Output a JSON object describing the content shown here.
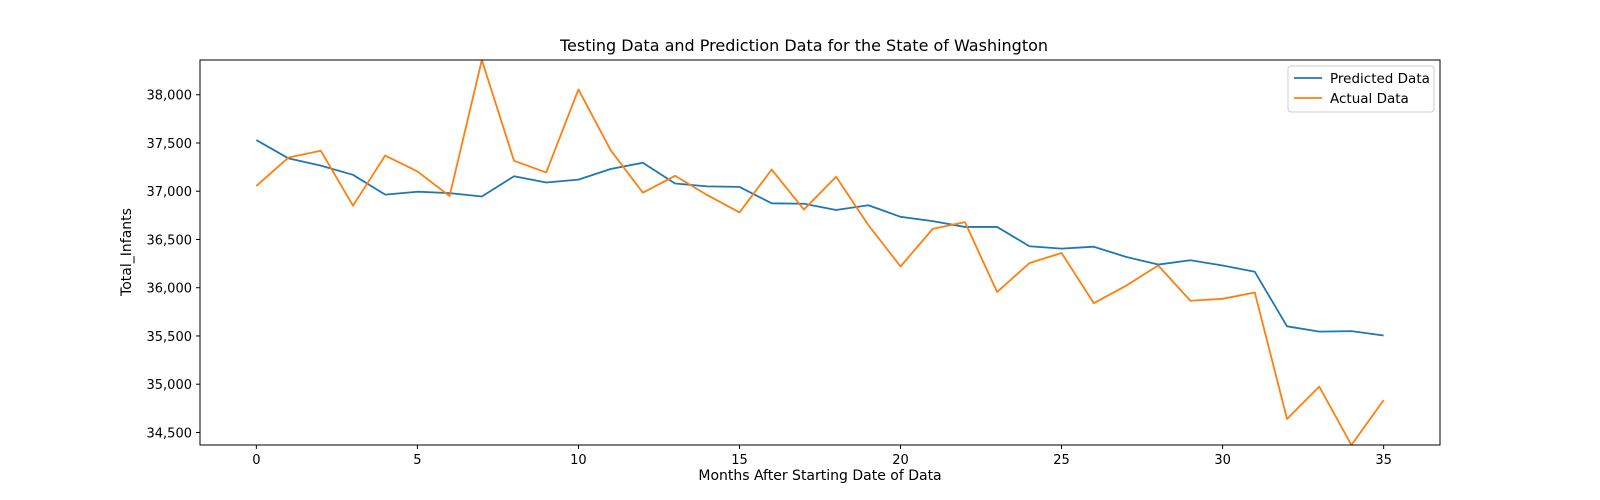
{
  "chart_data": {
    "type": "line",
    "title": "Testing Data and Prediction Data for the State of Washington",
    "xlabel": "Months After Starting Date of Data",
    "ylabel": "Total_Infants",
    "xlim": [
      -1.75,
      36.75
    ],
    "ylim": [
      34370,
      38360
    ],
    "x_ticks": [
      0,
      5,
      10,
      15,
      20,
      25,
      30,
      35
    ],
    "x_tick_labels": [
      "0",
      "5",
      "10",
      "15",
      "20",
      "25",
      "30",
      "35"
    ],
    "y_ticks": [
      34500,
      35000,
      35500,
      36000,
      36500,
      37000,
      37500,
      38000
    ],
    "y_tick_labels": [
      "34,500",
      "35,000",
      "35,500",
      "36,000",
      "36,500",
      "37,000",
      "37,500",
      "38,000"
    ],
    "grid": false,
    "legend_position": "upper right",
    "x": [
      0,
      1,
      2,
      3,
      4,
      5,
      6,
      7,
      8,
      9,
      10,
      11,
      12,
      13,
      14,
      15,
      16,
      17,
      18,
      19,
      20,
      21,
      22,
      23,
      24,
      25,
      26,
      27,
      28,
      29,
      30,
      31,
      32,
      33,
      34,
      35
    ],
    "series": [
      {
        "name": "Predicted Data",
        "color": "#1f77b4",
        "values": [
          37530,
          37340,
          37265,
          37170,
          36965,
          36995,
          36980,
          36945,
          37155,
          37090,
          37120,
          37230,
          37295,
          37080,
          37050,
          37045,
          36875,
          36870,
          36805,
          36855,
          36735,
          36690,
          36630,
          36630,
          36430,
          36405,
          36425,
          36320,
          36240,
          36285,
          36230,
          36165,
          35600,
          35545,
          35550,
          35505
        ]
      },
      {
        "name": "Actual Data",
        "color": "#ff7f0e",
        "values": [
          37055,
          37350,
          37420,
          36850,
          37370,
          37205,
          36950,
          38360,
          37315,
          37195,
          38055,
          37425,
          36985,
          37160,
          36960,
          36780,
          37225,
          36810,
          37150,
          36650,
          36220,
          36610,
          36680,
          35955,
          36255,
          36360,
          35840,
          36020,
          36230,
          35865,
          35885,
          35950,
          34640,
          34975,
          34370,
          34835
        ]
      }
    ]
  }
}
